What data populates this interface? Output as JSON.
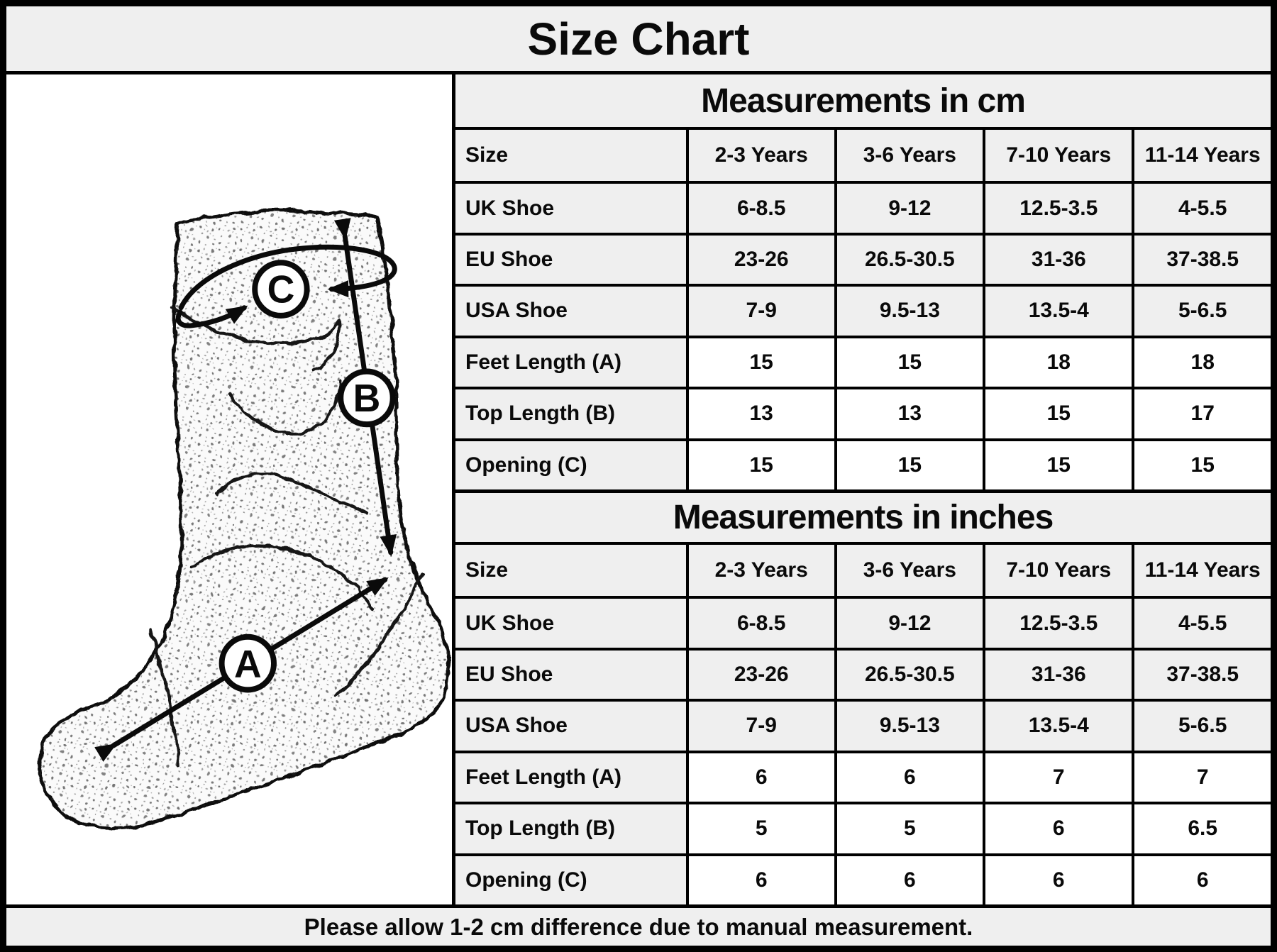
{
  "title": "Size Chart",
  "note": "Please allow 1-2 cm difference due to manual measurement.",
  "colors": {
    "band_gray": "#efefef",
    "line_black": "#000000",
    "paper_white": "#ffffff"
  },
  "diagram": {
    "description": "fuzzy-sock-measurement-sketch",
    "marker_a": "A",
    "marker_b": "B",
    "marker_c": "C"
  },
  "tables": [
    {
      "title": "Measurements in cm",
      "columns": [
        "Size",
        "2-3 Years",
        "3-6 Years",
        "7-10 Years",
        "11-14 Years"
      ],
      "rows": [
        {
          "label": "UK Shoe",
          "shaded": true,
          "values": [
            "6-8.5",
            "9-12",
            "12.5-3.5",
            "4-5.5"
          ]
        },
        {
          "label": "EU Shoe",
          "shaded": true,
          "values": [
            "23-26",
            "26.5-30.5",
            "31-36",
            "37-38.5"
          ]
        },
        {
          "label": "USA Shoe",
          "shaded": true,
          "values": [
            "7-9",
            "9.5-13",
            "13.5-4",
            "5-6.5"
          ]
        },
        {
          "label": "Feet Length (A)",
          "shaded": false,
          "values": [
            "15",
            "15",
            "18",
            "18"
          ]
        },
        {
          "label": "Top Length (B)",
          "shaded": false,
          "values": [
            "13",
            "13",
            "15",
            "17"
          ]
        },
        {
          "label": "Opening (C)",
          "shaded": false,
          "values": [
            "15",
            "15",
            "15",
            "15"
          ]
        }
      ]
    },
    {
      "title": "Measurements in inches",
      "columns": [
        "Size",
        "2-3 Years",
        "3-6 Years",
        "7-10 Years",
        "11-14 Years"
      ],
      "rows": [
        {
          "label": "UK Shoe",
          "shaded": true,
          "values": [
            "6-8.5",
            "9-12",
            "12.5-3.5",
            "4-5.5"
          ]
        },
        {
          "label": "EU Shoe",
          "shaded": true,
          "values": [
            "23-26",
            "26.5-30.5",
            "31-36",
            "37-38.5"
          ]
        },
        {
          "label": "USA Shoe",
          "shaded": true,
          "values": [
            "7-9",
            "9.5-13",
            "13.5-4",
            "5-6.5"
          ]
        },
        {
          "label": "Feet Length (A)",
          "shaded": false,
          "values": [
            "6",
            "6",
            "7",
            "7"
          ]
        },
        {
          "label": "Top Length (B)",
          "shaded": false,
          "values": [
            "5",
            "5",
            "6",
            "6.5"
          ]
        },
        {
          "label": "Opening (C)",
          "shaded": false,
          "values": [
            "6",
            "6",
            "6",
            "6"
          ]
        }
      ]
    }
  ]
}
